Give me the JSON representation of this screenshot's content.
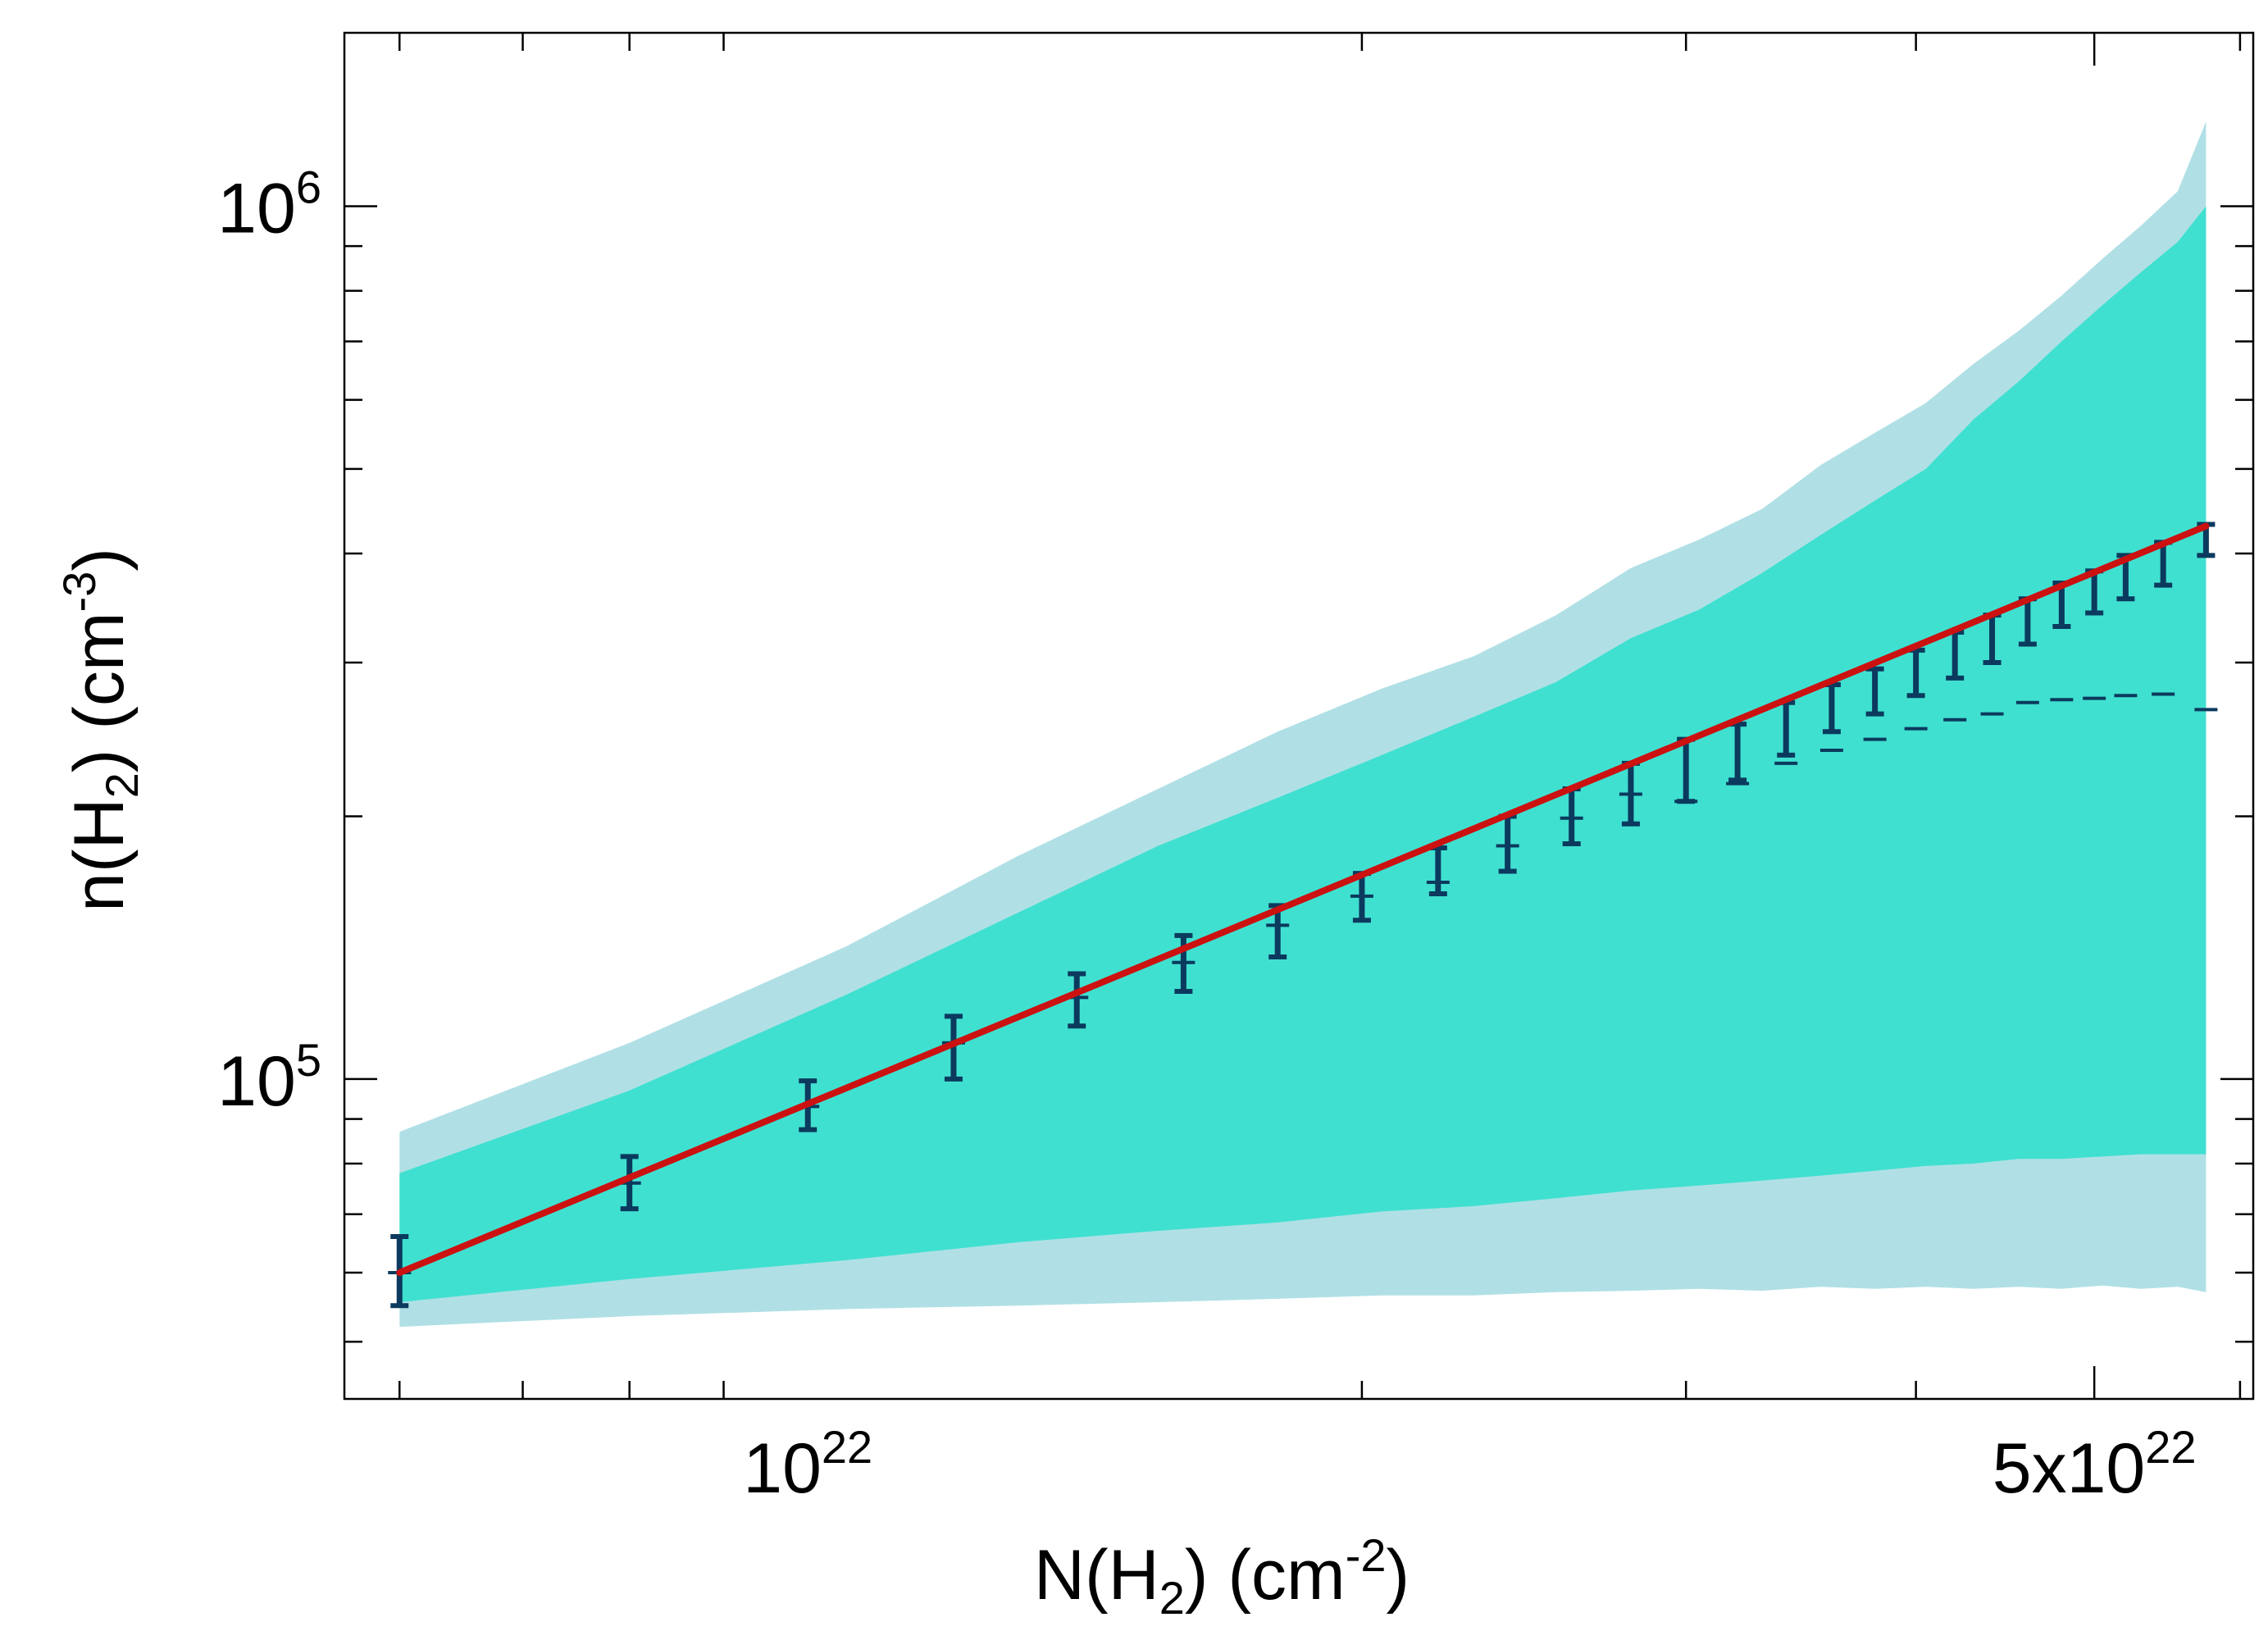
{
  "chart_data": {
    "type": "line",
    "xscale": "log",
    "yscale": "log",
    "xlim": [
      5.6e+21,
      6.1e+22
    ],
    "ylim": [
      43000.0,
      1580000.0
    ],
    "xlabel": {
      "prefix": "N(H",
      "sub": "2",
      "mid": ") (cm",
      "sup": "-2",
      "suffix": ")"
    },
    "ylabel": {
      "prefix": "n(H",
      "sub": "2",
      "mid": ") (cm",
      "sup": "-3",
      "suffix": ")"
    },
    "x_ticks": [
      {
        "value": 1e+22,
        "base": "10",
        "exp": "22"
      },
      {
        "value": 5e+22,
        "base": "5x10",
        "exp": "22"
      }
    ],
    "y_ticks": [
      {
        "value": 100000.0,
        "base": "10",
        "exp": "5"
      },
      {
        "value": 1000000.0,
        "base": "10",
        "exp": "6"
      }
    ],
    "colors": {
      "outer_band": "#b0e0e6",
      "inner_band": "#40e0d0",
      "fit_line": "#cc1111",
      "points": "#0b3a5e"
    },
    "series": [
      {
        "kind": "band",
        "role": "outer",
        "x": [
          6e+21,
          8e+21,
          1.05e+22,
          1.3e+22,
          1.55e+22,
          1.8e+22,
          2.05e+22,
          2.3e+22,
          2.55e+22,
          2.8e+22,
          3.05e+22,
          3.3e+22,
          3.55e+22,
          3.8e+22,
          4.05e+22,
          4.3e+22,
          4.55e+22,
          4.8e+22,
          5.05e+22,
          5.3e+22,
          5.55e+22,
          5.75e+22
        ],
        "upper": [
          87000.0,
          110000.0,
          142000.0,
          180000.0,
          215000.0,
          250000.0,
          280000.0,
          305000.0,
          340000.0,
          385000.0,
          415000.0,
          450000.0,
          505000.0,
          550000.0,
          595000.0,
          660000.0,
          720000.0,
          790000.0,
          870000.0,
          950000.0,
          1040000.0,
          1250000.0
        ],
        "lower": [
          52000.0,
          53500.0,
          54500.0,
          55000.0,
          55500.0,
          56000.0,
          56500.0,
          56500.0,
          57000.0,
          57200.0,
          57500.0,
          57200.0,
          57800.0,
          57500.0,
          57800.0,
          57500.0,
          57800.0,
          57500.0,
          58000.0,
          57500.0,
          57800.0,
          57000.0
        ]
      },
      {
        "kind": "band",
        "role": "inner",
        "x": [
          6e+21,
          8e+21,
          1.05e+22,
          1.3e+22,
          1.55e+22,
          1.8e+22,
          2.05e+22,
          2.3e+22,
          2.55e+22,
          2.8e+22,
          3.05e+22,
          3.3e+22,
          3.55e+22,
          3.8e+22,
          4.05e+22,
          4.3e+22,
          4.55e+22,
          4.8e+22,
          5.05e+22,
          5.3e+22,
          5.55e+22,
          5.75e+22
        ],
        "upper": [
          78000.0,
          97000.0,
          125000.0,
          155000.0,
          185000.0,
          210000.0,
          235000.0,
          260000.0,
          285000.0,
          320000.0,
          345000.0,
          380000.0,
          420000.0,
          460000.0,
          500000.0,
          570000.0,
          630000.0,
          700000.0,
          770000.0,
          840000.0,
          910000.0,
          1000000.0
        ]
      },
      {
        "kind": "band",
        "role": "inner-lower",
        "x": [
          6e+21,
          8e+21,
          1.05e+22,
          1.3e+22,
          1.55e+22,
          1.8e+22,
          2.05e+22,
          2.3e+22,
          2.55e+22,
          2.8e+22,
          3.05e+22,
          3.3e+22,
          3.55e+22,
          3.8e+22,
          4.05e+22,
          4.3e+22,
          4.55e+22,
          4.8e+22,
          5.05e+22,
          5.3e+22,
          5.55e+22,
          5.75e+22
        ],
        "lower": [
          55500.0,
          59000.0,
          62000.0,
          65000.0,
          67000.0,
          68500.0,
          70500.0,
          71500.0,
          73000.0,
          74500.0,
          75500.0,
          76500.0,
          77500.0,
          78500.0,
          79500.0,
          80000.0,
          81000.0,
          81000.0,
          81500.0,
          82000.0,
          82000.0,
          82000.0
        ]
      },
      {
        "kind": "errorbars",
        "points": [
          {
            "x": 6e+21,
            "y": 60000.0,
            "lo": 55000.0,
            "hi": 66000.0
          },
          {
            "x": 8e+21,
            "y": 76000.0,
            "lo": 71000.0,
            "hi": 81500.0
          },
          {
            "x": 1e+22,
            "y": 93000.0,
            "lo": 87500.0,
            "hi": 99500.0
          },
          {
            "x": 1.2e+22,
            "y": 110000.0,
            "lo": 100000.0,
            "hi": 118000.0
          },
          {
            "x": 1.4e+22,
            "y": 124000.0,
            "lo": 115000.0,
            "hi": 132000.0
          },
          {
            "x": 1.6e+22,
            "y": 136000.0,
            "lo": 126000.0,
            "hi": 146000.0
          },
          {
            "x": 1.8e+22,
            "y": 150000.0,
            "lo": 138000.0,
            "hi": 158000.0
          },
          {
            "x": 2e+22,
            "y": 162000.0,
            "lo": 152000.0,
            "hi": 172000.0
          },
          {
            "x": 2.2e+22,
            "y": 168000.0,
            "lo": 163000.0,
            "hi": 184000.0
          },
          {
            "x": 2.4e+22,
            "y": 185000.0,
            "lo": 173000.0,
            "hi": 200000.0
          },
          {
            "x": 2.6e+22,
            "y": 199000.0,
            "lo": 186000.0,
            "hi": 215000.0
          },
          {
            "x": 2.8e+22,
            "y": 212000.0,
            "lo": 196000.0,
            "hi": 230000.0
          },
          {
            "x": 3e+22,
            "y": 208000.0,
            "lo": 208000.0,
            "hi": 245000.0
          },
          {
            "x": 3.2e+22,
            "y": 218000.0,
            "lo": 220000.0,
            "hi": 255000.0
          },
          {
            "x": 3.4e+22,
            "y": 230000.0,
            "lo": 235000.0,
            "hi": 270000.0
          },
          {
            "x": 3.6e+22,
            "y": 238000.0,
            "lo": 250000.0,
            "hi": 283000.0
          },
          {
            "x": 3.8e+22,
            "y": 245000.0,
            "lo": 262000.0,
            "hi": 295000.0
          },
          {
            "x": 4e+22,
            "y": 252000.0,
            "lo": 275000.0,
            "hi": 310000.0
          },
          {
            "x": 4.2e+22,
            "y": 258000.0,
            "lo": 288000.0,
            "hi": 325000.0
          },
          {
            "x": 4.4e+22,
            "y": 262000.0,
            "lo": 300000.0,
            "hi": 340000.0
          },
          {
            "x": 4.6e+22,
            "y": 270000.0,
            "lo": 315000.0,
            "hi": 355000.0
          },
          {
            "x": 4.8e+22,
            "y": 272000.0,
            "lo": 330000.0,
            "hi": 370000.0
          },
          {
            "x": 5e+22,
            "y": 273000.0,
            "lo": 342000.0,
            "hi": 382000.0
          },
          {
            "x": 5.2e+22,
            "y": 275000.0,
            "lo": 355000.0,
            "hi": 398000.0
          },
          {
            "x": 5.45e+22,
            "y": 276000.0,
            "lo": 368000.0,
            "hi": 412000.0
          },
          {
            "x": 5.75e+22,
            "y": 265000.0,
            "lo": 398000.0,
            "hi": 432000.0
          }
        ]
      },
      {
        "kind": "fit",
        "x": [
          6e+21,
          5.75e+22
        ],
        "y": [
          60000.0,
          430000.0
        ]
      }
    ]
  }
}
